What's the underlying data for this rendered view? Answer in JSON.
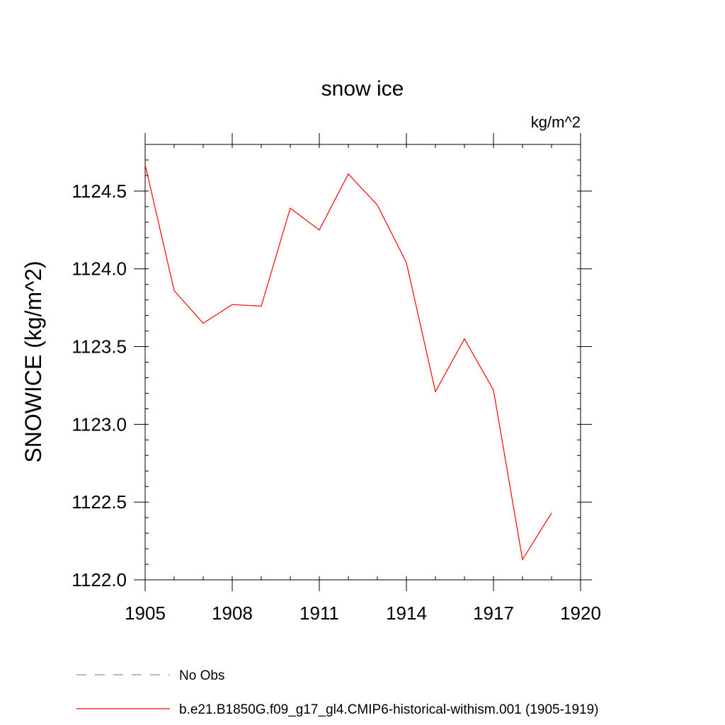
{
  "chart_data": {
    "type": "line",
    "title": "snow ice",
    "units_label": "kg/m^2",
    "ylabel": "SNOWICE  (kg/m^2)",
    "xlabel": "",
    "xlim": [
      1905,
      1920
    ],
    "ylim": [
      1122.0,
      1124.8
    ],
    "x_ticks": [
      1905,
      1908,
      1911,
      1914,
      1917,
      1920
    ],
    "x_tick_labels": [
      "1905",
      "1908",
      "1911",
      "1914",
      "1917",
      "1920"
    ],
    "y_ticks": [
      1122.0,
      1122.5,
      1123.0,
      1123.5,
      1124.0,
      1124.5
    ],
    "y_tick_labels": [
      "1122.0",
      "1122.5",
      "1123.0",
      "1123.5",
      "1124.0",
      "1124.5"
    ],
    "grid": false,
    "legend_position": "bottom",
    "series": [
      {
        "name": "b.e21.B1850G.f09_g17_gl4.CMIP6-historical-withism.001 (1905-1919)",
        "color": "#ff0000",
        "style": "solid",
        "x": [
          1905,
          1906,
          1907,
          1908,
          1909,
          1910,
          1911,
          1912,
          1913,
          1914,
          1915,
          1916,
          1917,
          1918,
          1919
        ],
        "y": [
          1124.67,
          1123.86,
          1123.65,
          1123.77,
          1123.76,
          1124.39,
          1124.25,
          1124.61,
          1124.41,
          1124.04,
          1123.21,
          1123.55,
          1123.22,
          1122.13,
          1122.43
        ]
      },
      {
        "name": "No Obs",
        "color": "#9a88c8",
        "style": "dashed",
        "x": [],
        "y": []
      }
    ]
  }
}
